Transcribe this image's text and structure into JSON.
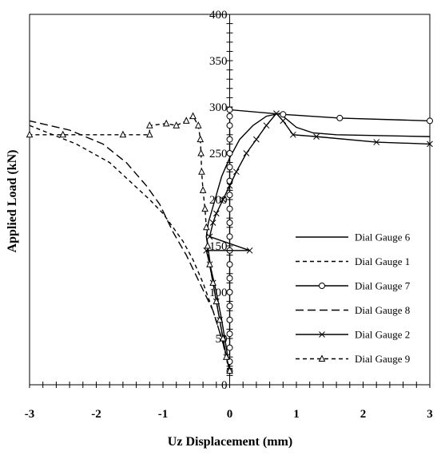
{
  "chart_data": {
    "type": "line",
    "xlabel": "Uz Displacement (mm)",
    "ylabel": "Applied Load (kN)",
    "xlim": [
      -3,
      3
    ],
    "ylim": [
      0,
      400
    ],
    "x_ticks": [
      "-3",
      "-2",
      "-1",
      "0",
      "1",
      "2",
      "3"
    ],
    "y_ticks": [
      "0",
      "50",
      "100",
      "150",
      "200",
      "250",
      "300",
      "350",
      "400"
    ],
    "x_tick_values": [
      -3,
      -2,
      -1,
      0,
      1,
      2,
      3
    ],
    "y_tick_values": [
      0,
      50,
      100,
      150,
      200,
      250,
      300,
      350,
      400
    ],
    "grid": false,
    "legend_position": "right",
    "series": [
      {
        "name": "Dial Gauge 6",
        "style": "solid",
        "marker": "none",
        "points": [
          [
            0,
            15
          ],
          [
            -0.05,
            40
          ],
          [
            -0.12,
            70
          ],
          [
            -0.2,
            100
          ],
          [
            -0.28,
            125
          ],
          [
            -0.32,
            145
          ],
          [
            -0.35,
            160
          ],
          [
            -0.32,
            175
          ],
          [
            -0.28,
            185
          ],
          [
            -0.2,
            205
          ],
          [
            -0.12,
            225
          ],
          [
            0,
            245
          ],
          [
            0.15,
            265
          ],
          [
            0.35,
            280
          ],
          [
            0.55,
            290
          ],
          [
            0.75,
            293
          ],
          [
            1.0,
            278
          ],
          [
            1.25,
            272
          ],
          [
            1.6,
            270
          ],
          [
            3.0,
            268
          ]
        ]
      },
      {
        "name": "Dial Gauge 1",
        "style": "dash",
        "marker": "none",
        "points": [
          [
            0,
            15
          ],
          [
            -0.05,
            30
          ],
          [
            -0.12,
            50
          ],
          [
            -0.25,
            80
          ],
          [
            -0.4,
            110
          ],
          [
            -0.55,
            135
          ],
          [
            -0.7,
            155
          ],
          [
            -0.85,
            170
          ],
          [
            -1.0,
            185
          ],
          [
            -1.2,
            200
          ],
          [
            -1.5,
            220
          ],
          [
            -1.8,
            240
          ],
          [
            -2.3,
            260
          ],
          [
            -3.0,
            280
          ]
        ]
      },
      {
        "name": "Dial Gauge 7",
        "style": "solid",
        "marker": "circle",
        "points": [
          [
            0,
            15
          ],
          [
            0,
            25
          ],
          [
            0,
            40
          ],
          [
            0,
            55
          ],
          [
            0,
            70
          ],
          [
            0,
            85
          ],
          [
            0,
            100
          ],
          [
            0,
            115
          ],
          [
            0,
            130
          ],
          [
            0,
            145
          ],
          [
            0,
            160
          ],
          [
            0,
            175
          ],
          [
            0,
            190
          ],
          [
            0,
            205
          ],
          [
            0,
            220
          ],
          [
            0,
            235
          ],
          [
            0,
            250
          ],
          [
            0,
            265
          ],
          [
            0,
            280
          ],
          [
            0,
            290
          ],
          [
            0,
            297
          ],
          [
            0.8,
            292
          ],
          [
            1.65,
            288
          ],
          [
            3.0,
            285
          ]
        ]
      },
      {
        "name": "Dial Gauge 8",
        "style": "longdash",
        "marker": "none",
        "points": [
          [
            0,
            15
          ],
          [
            -0.1,
            45
          ],
          [
            -0.25,
            80
          ],
          [
            -0.45,
            110
          ],
          [
            -0.65,
            140
          ],
          [
            -0.85,
            165
          ],
          [
            -0.95,
            180
          ],
          [
            -1.05,
            195
          ],
          [
            -1.25,
            215
          ],
          [
            -1.55,
            240
          ],
          [
            -1.9,
            260
          ],
          [
            -2.4,
            275
          ],
          [
            -3.0,
            285
          ]
        ]
      },
      {
        "name": "Dial Gauge 2",
        "style": "solid",
        "marker": "x",
        "points": [
          [
            0,
            15
          ],
          [
            -0.05,
            30
          ],
          [
            -0.1,
            50
          ],
          [
            -0.15,
            70
          ],
          [
            -0.2,
            90
          ],
          [
            -0.25,
            110
          ],
          [
            -0.3,
            130
          ],
          [
            -0.35,
            145
          ],
          [
            0.3,
            145
          ],
          [
            -0.3,
            160
          ],
          [
            -0.25,
            175
          ],
          [
            -0.2,
            185
          ],
          [
            -0.1,
            200
          ],
          [
            0,
            215
          ],
          [
            0.1,
            230
          ],
          [
            0.25,
            250
          ],
          [
            0.4,
            265
          ],
          [
            0.55,
            280
          ],
          [
            0.7,
            293
          ],
          [
            0.8,
            285
          ],
          [
            0.95,
            270
          ],
          [
            1.3,
            268
          ],
          [
            2.2,
            262
          ],
          [
            3.0,
            260
          ]
        ]
      },
      {
        "name": "Dial Gauge 9",
        "style": "dash",
        "marker": "triangle",
        "points": [
          [
            0,
            15
          ],
          [
            -0.05,
            30
          ],
          [
            -0.1,
            50
          ],
          [
            -0.15,
            70
          ],
          [
            -0.2,
            90
          ],
          [
            -0.25,
            110
          ],
          [
            -0.3,
            130
          ],
          [
            -0.33,
            150
          ],
          [
            -0.35,
            170
          ],
          [
            -0.37,
            190
          ],
          [
            -0.4,
            210
          ],
          [
            -0.42,
            230
          ],
          [
            -0.43,
            250
          ],
          [
            -0.44,
            265
          ],
          [
            -0.47,
            280
          ],
          [
            -0.55,
            290
          ],
          [
            -0.65,
            285
          ],
          [
            -0.8,
            280
          ],
          [
            -0.95,
            282
          ],
          [
            -1.2,
            280
          ],
          [
            -1.2,
            270
          ],
          [
            -1.6,
            270
          ],
          [
            -2.5,
            270
          ],
          [
            -3.0,
            270
          ]
        ]
      }
    ]
  }
}
